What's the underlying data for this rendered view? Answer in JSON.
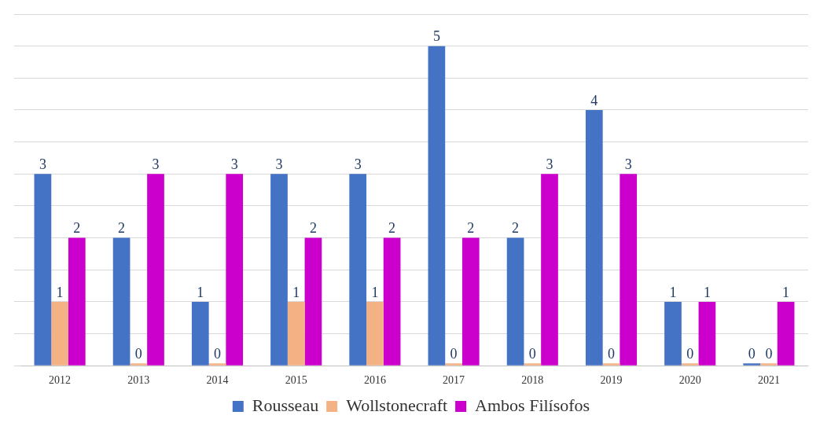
{
  "chart_data": {
    "type": "bar",
    "categories": [
      "2012",
      "2013",
      "2014",
      "2015",
      "2016",
      "2017",
      "2018",
      "2019",
      "2020",
      "2021"
    ],
    "series": [
      {
        "name": "Rousseau",
        "color": "#4472c4",
        "values": [
          3,
          2,
          1,
          3,
          3,
          5,
          2,
          4,
          1,
          0
        ]
      },
      {
        "name": "Wollstonecraft",
        "color": "#f4b183",
        "values": [
          1,
          0,
          0,
          1,
          1,
          0,
          0,
          0,
          0,
          0
        ]
      },
      {
        "name": "Ambos Filísofos",
        "color": "#cc00cc",
        "values": [
          2,
          3,
          3,
          2,
          2,
          2,
          3,
          3,
          1,
          1
        ]
      }
    ],
    "ylim": [
      0,
      5.5
    ],
    "yticks": [
      {
        "value": 0,
        "label": null
      },
      {
        "value": 0.5,
        "label": null
      },
      {
        "value": 1,
        "label": null
      },
      {
        "value": 1.5,
        "label": null
      },
      {
        "value": 2,
        "label": null
      },
      {
        "value": 2.5,
        "label": null
      },
      {
        "value": 3,
        "label": null
      },
      {
        "value": 3.5,
        "label": null
      },
      {
        "value": 4,
        "label": null
      },
      {
        "value": 4.5,
        "label": null
      },
      {
        "value": 5,
        "label": null
      },
      {
        "value": 5.5,
        "label": null
      }
    ],
    "tick_labels": "x",
    "grid": "y",
    "legend": "bottom",
    "data_labels": true
  }
}
